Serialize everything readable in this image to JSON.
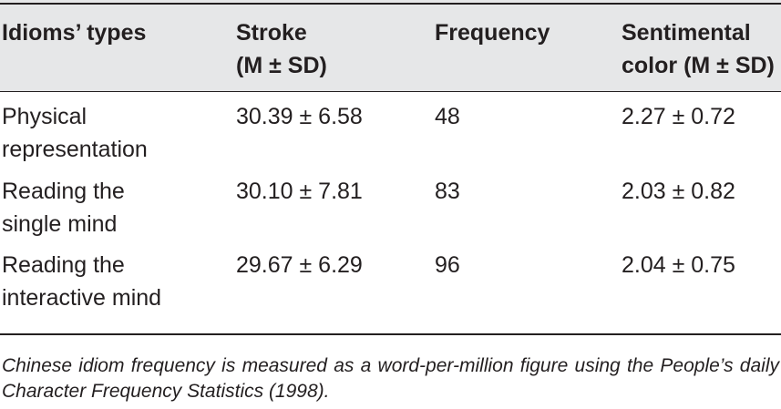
{
  "table": {
    "headers": [
      {
        "line1": "Idioms’ types",
        "line2": ""
      },
      {
        "line1": "Stroke",
        "line2": "(M ± SD)"
      },
      {
        "line1": "Frequency",
        "line2": ""
      },
      {
        "line1": "Sentimental",
        "line2": "color (M ± SD)"
      }
    ],
    "rows": [
      {
        "type_line1": "Physical",
        "type_line2": "representation",
        "stroke": "30.39 ± 6.58",
        "frequency": "48",
        "sentimental_color": "2.27 ± 0.72"
      },
      {
        "type_line1": "Reading the",
        "type_line2": "single mind",
        "stroke": "30.10 ± 7.81",
        "frequency": "83",
        "sentimental_color": "2.03 ± 0.82"
      },
      {
        "type_line1": "Reading the",
        "type_line2": "interactive mind",
        "stroke": "29.67 ± 6.29",
        "frequency": "96",
        "sentimental_color": "2.04 ± 0.75"
      }
    ]
  },
  "footnote": "Chinese idiom frequency is measured as a word-per-million figure using the People’s daily Character Frequency Statistics (1998).",
  "colors": {
    "header_background": "#e6e7e8",
    "text": "#231f20",
    "rules": "#231f20"
  }
}
